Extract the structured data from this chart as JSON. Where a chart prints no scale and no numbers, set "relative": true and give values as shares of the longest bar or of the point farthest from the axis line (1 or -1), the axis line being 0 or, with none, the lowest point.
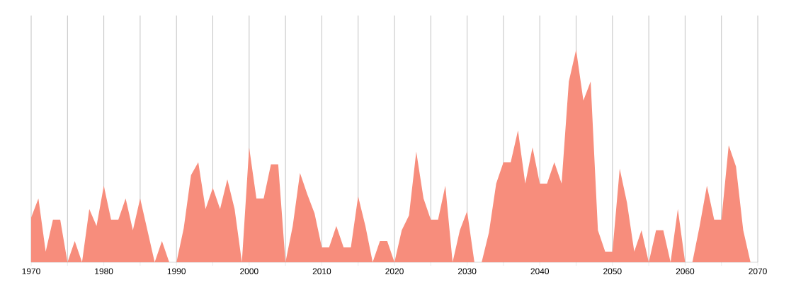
{
  "chart_data": {
    "type": "area",
    "relative": true,
    "color": "#f78d7c",
    "grid": true,
    "x": [
      1970,
      1971,
      1972,
      1973,
      1974,
      1975,
      1976,
      1977,
      1978,
      1979,
      1980,
      1981,
      1982,
      1983,
      1984,
      1985,
      1986,
      1987,
      1988,
      1989,
      1990,
      1991,
      1992,
      1993,
      1994,
      1995,
      1996,
      1997,
      1998,
      1999,
      2000,
      2001,
      2002,
      2003,
      2004,
      2005,
      2006,
      2007,
      2008,
      2009,
      2010,
      2011,
      2012,
      2013,
      2014,
      2015,
      2016,
      2017,
      2018,
      2019,
      2020,
      2021,
      2022,
      2023,
      2024,
      2025,
      2026,
      2027,
      2028,
      2029,
      2030,
      2031,
      2032,
      2033,
      2034,
      2035,
      2036,
      2037,
      2038,
      2039,
      2040,
      2041,
      2042,
      2043,
      2044,
      2045,
      2046,
      2047,
      2048,
      2049,
      2050,
      2051,
      2052,
      2053,
      2054,
      2055,
      2056,
      2057,
      2058,
      2059,
      2060,
      2061,
      2062,
      2063,
      2064,
      2065,
      2066,
      2067,
      2068,
      2069
    ],
    "values": [
      0.21,
      0.3,
      0.05,
      0.2,
      0.2,
      0,
      0.1,
      0,
      0.25,
      0.17,
      0.36,
      0.2,
      0.2,
      0.3,
      0.15,
      0.3,
      0.15,
      0,
      0.1,
      0,
      0,
      0.16,
      0.41,
      0.47,
      0.25,
      0.35,
      0.25,
      0.39,
      0.25,
      0,
      0.54,
      0.3,
      0.3,
      0.46,
      0.46,
      0,
      0.17,
      0.42,
      0.32,
      0.23,
      0.07,
      0.07,
      0.17,
      0.07,
      0.07,
      0.31,
      0.17,
      0,
      0.1,
      0.1,
      0,
      0.15,
      0.22,
      0.52,
      0.3,
      0.2,
      0.2,
      0.36,
      0,
      0.15,
      0.24,
      0,
      0,
      0.14,
      0.37,
      0.47,
      0.47,
      0.62,
      0.37,
      0.54,
      0.37,
      0.37,
      0.47,
      0.37,
      0.85,
      1,
      0.76,
      0.85,
      0.15,
      0.05,
      0.05,
      0.44,
      0.28,
      0.05,
      0.15,
      0,
      0.15,
      0.15,
      0,
      0.25,
      0,
      0,
      0.17,
      0.36,
      0.2,
      0.2,
      0.55,
      0.45,
      0.15,
      0
    ],
    "xlim": [
      1970,
      2070
    ],
    "xticks": [
      1970,
      {
        "value": 1975,
        "label": null
      },
      1980,
      {
        "value": 1985,
        "label": null
      },
      1990,
      {
        "value": 1995,
        "label": null
      },
      2000,
      {
        "value": 2005,
        "label": null
      },
      2010,
      {
        "value": 2015,
        "label": null
      },
      2020,
      {
        "value": 2025,
        "label": null
      },
      2030,
      {
        "value": 2035,
        "label": null
      },
      2040,
      {
        "value": 2045,
        "label": null
      },
      2050,
      {
        "value": 2055,
        "label": null
      },
      2060,
      {
        "value": 2065,
        "label": null
      },
      2070
    ]
  }
}
